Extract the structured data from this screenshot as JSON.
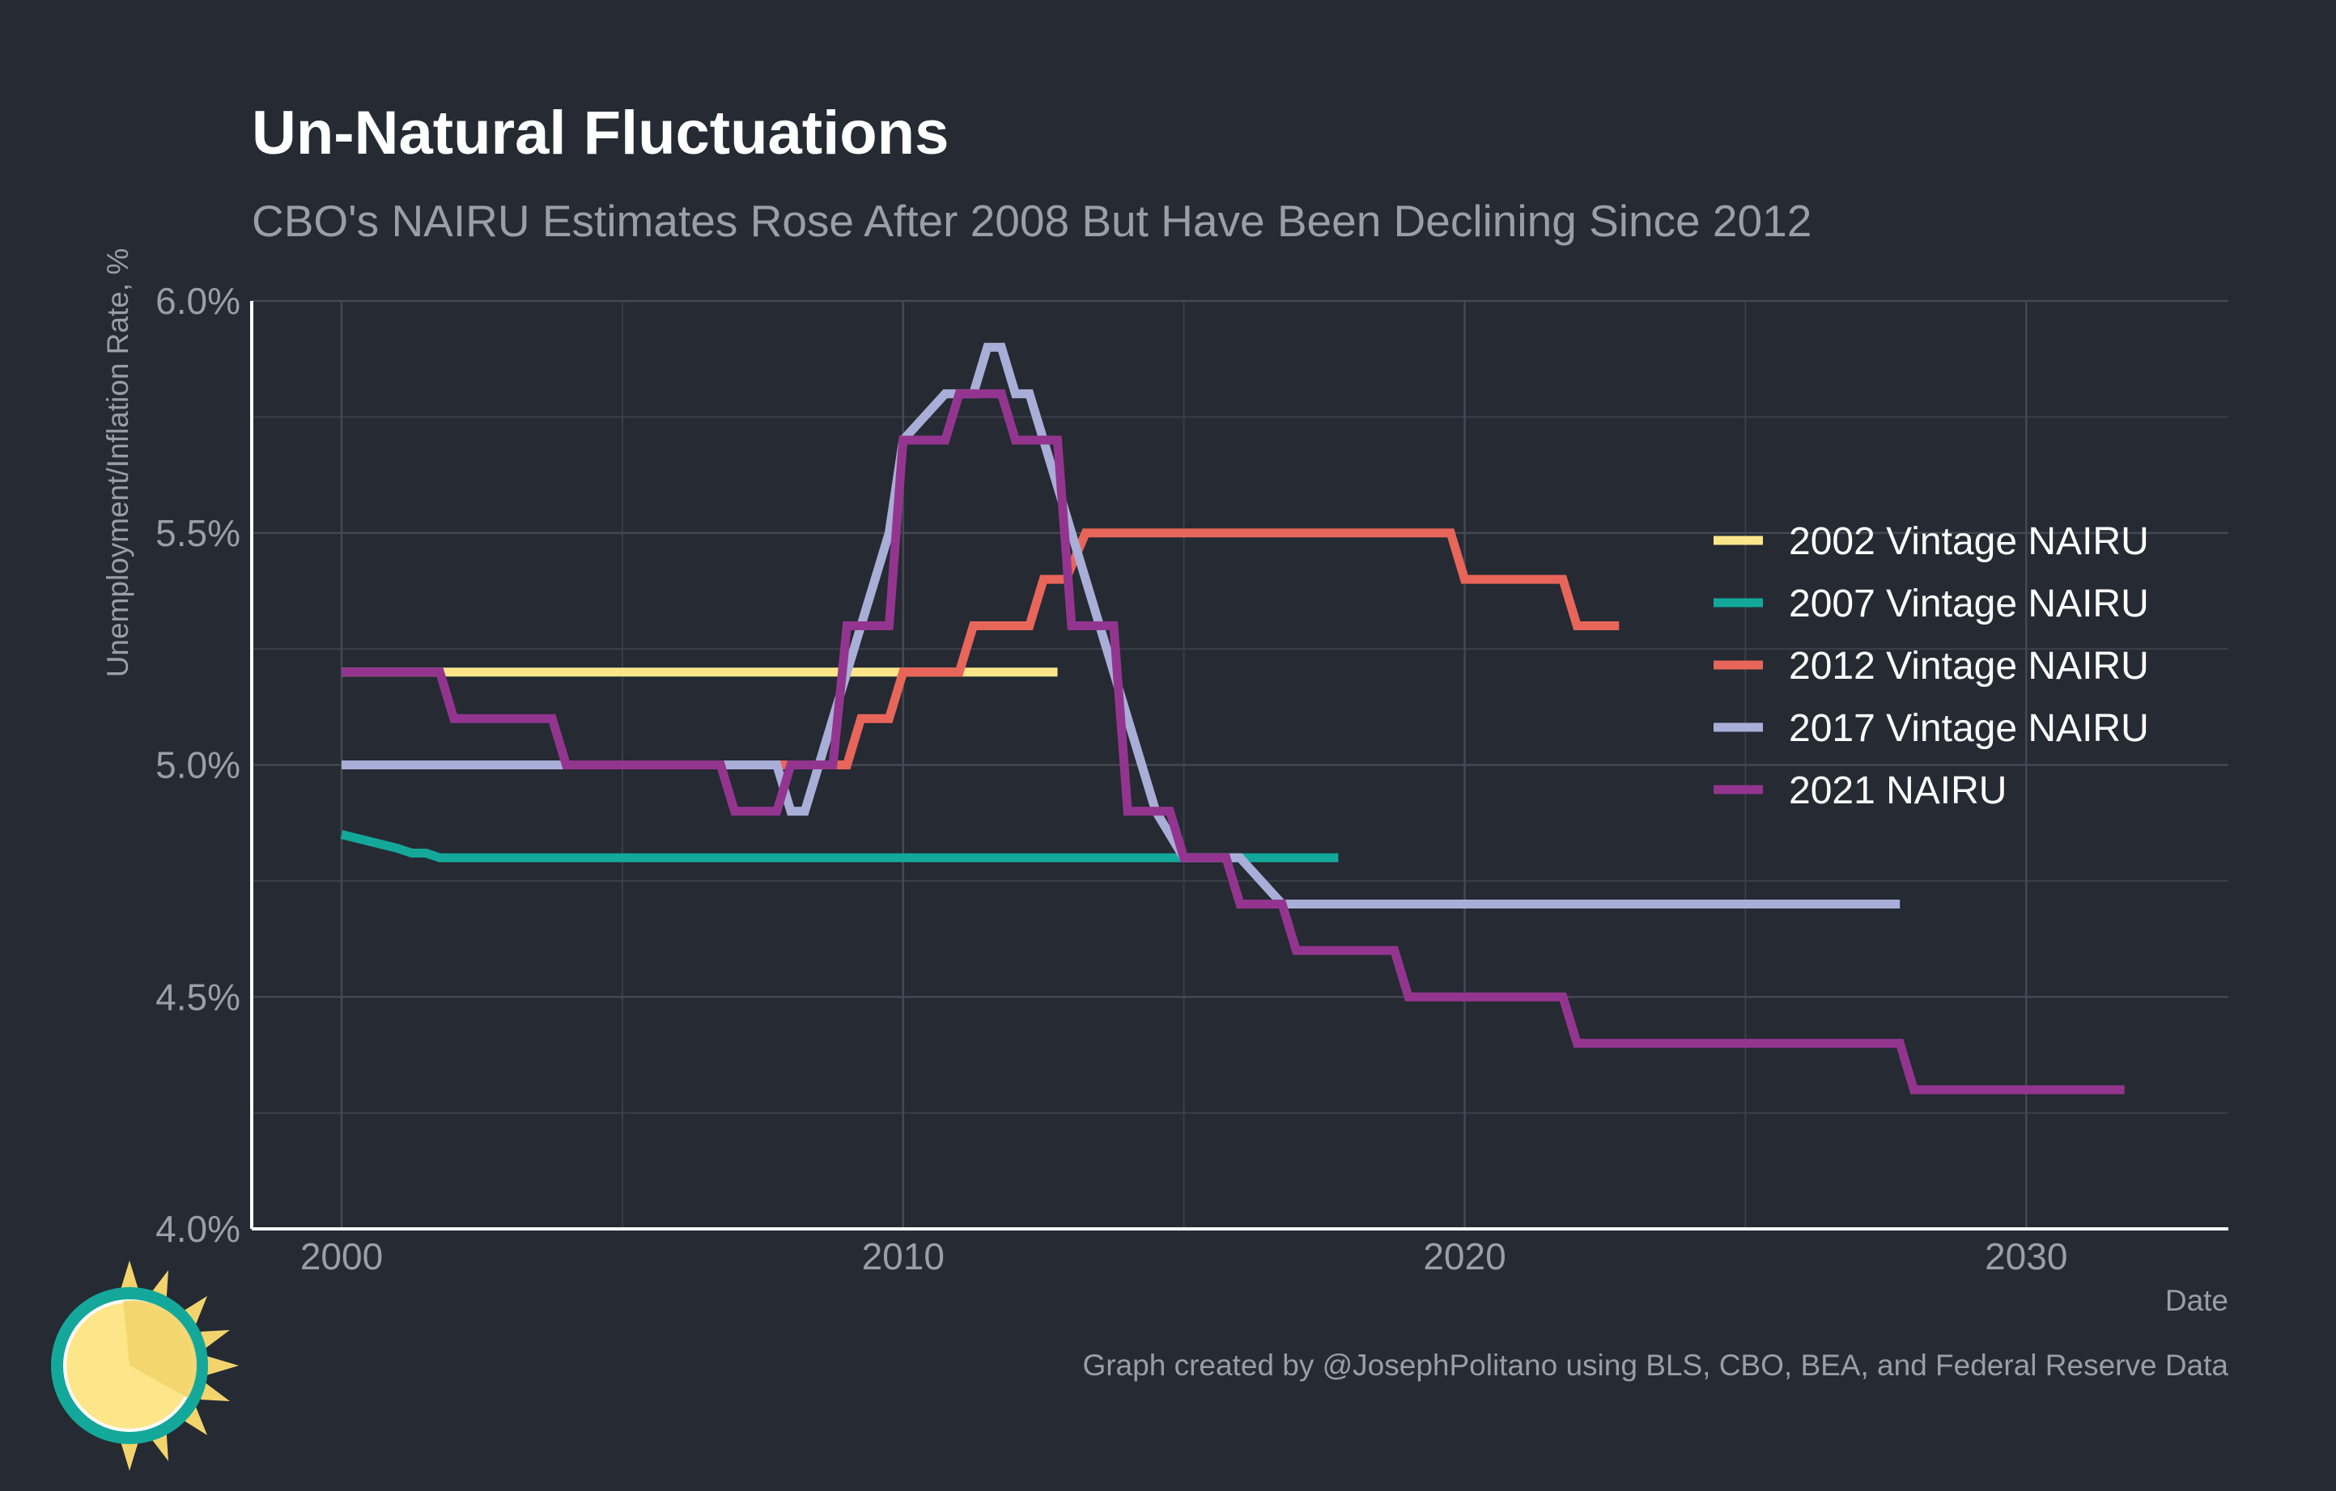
{
  "chart_data": {
    "type": "line",
    "title": "Un-Natural Fluctuations",
    "subtitle": "CBO's NAIRU Estimates Rose After 2008 But Have Been Declining Since 2012",
    "xlabel": "Date",
    "ylabel": "Unemployment/Inflation Rate, %",
    "caption": "Graph created by @JosephPolitano using BLS, CBO, BEA, and Federal Reserve Data",
    "xlim": [
      1998.4,
      2033.6
    ],
    "ylim": [
      4.0,
      6.0
    ],
    "x_ticks": [
      2000,
      2010,
      2020,
      2030
    ],
    "x_tick_labels": [
      "2000",
      "2010",
      "2020",
      "2030"
    ],
    "y_ticks": [
      4.0,
      4.5,
      5.0,
      5.5,
      6.0
    ],
    "y_tick_labels": [
      "4.0%",
      "4.5%",
      "5.0%",
      "5.5%",
      "6.0%"
    ],
    "grid": true,
    "legend_position": "right",
    "background_color": "#252a33",
    "series": [
      {
        "name": "2002 Vintage NAIRU",
        "color": "#fde68a",
        "points": [
          [
            2000.0,
            5.2
          ],
          [
            2012.75,
            5.2
          ]
        ]
      },
      {
        "name": "2007 Vintage NAIRU",
        "color": "#14a89a",
        "points": [
          [
            2000.0,
            4.85
          ],
          [
            2001.0,
            4.82
          ],
          [
            2001.25,
            4.81
          ],
          [
            2001.5,
            4.81
          ],
          [
            2001.75,
            4.8
          ],
          [
            2017.75,
            4.8
          ]
        ]
      },
      {
        "name": "2012 Vintage NAIRU",
        "color": "#e8655a",
        "points": [
          [
            2007.0,
            5.0
          ],
          [
            2008.75,
            5.0
          ],
          [
            2009.0,
            5.0
          ],
          [
            2009.25,
            5.1
          ],
          [
            2009.75,
            5.1
          ],
          [
            2010.0,
            5.2
          ],
          [
            2011.0,
            5.2
          ],
          [
            2011.25,
            5.3
          ],
          [
            2012.25,
            5.3
          ],
          [
            2012.5,
            5.4
          ],
          [
            2012.9,
            5.4
          ],
          [
            2013.25,
            5.5
          ],
          [
            2019.75,
            5.5
          ],
          [
            2020.0,
            5.4
          ],
          [
            2021.75,
            5.4
          ],
          [
            2022.0,
            5.3
          ],
          [
            2022.75,
            5.3
          ]
        ]
      },
      {
        "name": "2017 Vintage NAIRU",
        "color": "#a9aed8",
        "points": [
          [
            2000.0,
            5.0
          ],
          [
            2007.75,
            5.0
          ],
          [
            2008.0,
            4.9
          ],
          [
            2008.25,
            4.9
          ],
          [
            2009.0,
            5.2
          ],
          [
            2009.75,
            5.5
          ],
          [
            2010.0,
            5.7
          ],
          [
            2010.75,
            5.8
          ],
          [
            2011.25,
            5.8
          ],
          [
            2011.5,
            5.9
          ],
          [
            2011.75,
            5.9
          ],
          [
            2012.0,
            5.8
          ],
          [
            2012.25,
            5.8
          ],
          [
            2012.5,
            5.7
          ],
          [
            2013.0,
            5.5
          ],
          [
            2013.75,
            5.2
          ],
          [
            2014.5,
            4.9
          ],
          [
            2015.0,
            4.8
          ],
          [
            2016.0,
            4.8
          ],
          [
            2016.75,
            4.7
          ],
          [
            2027.75,
            4.7
          ]
        ]
      },
      {
        "name": "2021 NAIRU",
        "color": "#93358f",
        "points": [
          [
            2000.0,
            5.2
          ],
          [
            2001.75,
            5.2
          ],
          [
            2002.0,
            5.1
          ],
          [
            2003.75,
            5.1
          ],
          [
            2004.0,
            5.0
          ],
          [
            2006.75,
            5.0
          ],
          [
            2007.0,
            4.9
          ],
          [
            2007.75,
            4.9
          ],
          [
            2008.0,
            5.0
          ],
          [
            2008.75,
            5.0
          ],
          [
            2009.0,
            5.3
          ],
          [
            2009.75,
            5.3
          ],
          [
            2010.0,
            5.7
          ],
          [
            2010.75,
            5.7
          ],
          [
            2011.0,
            5.8
          ],
          [
            2011.75,
            5.8
          ],
          [
            2012.0,
            5.7
          ],
          [
            2012.75,
            5.7
          ],
          [
            2013.0,
            5.3
          ],
          [
            2013.75,
            5.3
          ],
          [
            2014.0,
            4.9
          ],
          [
            2014.75,
            4.9
          ],
          [
            2015.0,
            4.8
          ],
          [
            2015.75,
            4.8
          ],
          [
            2016.0,
            4.7
          ],
          [
            2016.75,
            4.7
          ],
          [
            2017.0,
            4.6
          ],
          [
            2018.75,
            4.6
          ],
          [
            2019.0,
            4.5
          ],
          [
            2021.75,
            4.5
          ],
          [
            2022.0,
            4.4
          ],
          [
            2027.75,
            4.4
          ],
          [
            2028.0,
            4.3
          ],
          [
            2031.75,
            4.3
          ]
        ]
      }
    ]
  },
  "logo": {
    "name": "sun-logo",
    "colors": [
      "#14a89a",
      "#fde68a",
      "#f3d46c"
    ]
  }
}
